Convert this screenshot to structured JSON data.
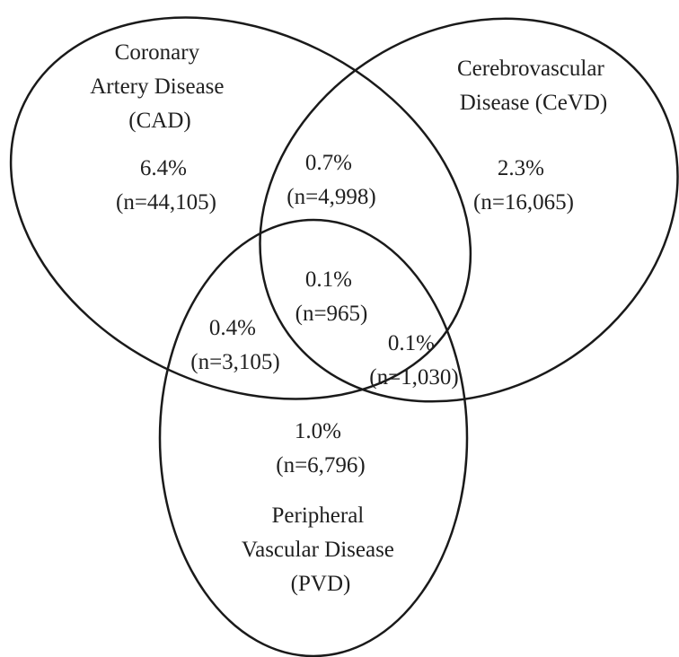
{
  "sets": [
    {
      "id": "cad",
      "label_lines": [
        "Coronary",
        "Artery Disease",
        "(CAD)"
      ]
    },
    {
      "id": "cevd",
      "label_lines": [
        "Cerebrovascular",
        "Disease (CeVD)"
      ]
    },
    {
      "id": "pvd",
      "label_lines": [
        "Peripheral",
        "Vascular Disease",
        "(PVD)"
      ]
    }
  ],
  "regions": {
    "cad_only": {
      "sets": [
        "cad"
      ],
      "percent": "6.4%",
      "count": "(n=44,105)"
    },
    "cevd_only": {
      "sets": [
        "cevd"
      ],
      "percent": "2.3%",
      "count": "(n=16,065)"
    },
    "pvd_only": {
      "sets": [
        "pvd"
      ],
      "percent": "1.0%",
      "count": "(n=6,796)"
    },
    "cad_cevd": {
      "sets": [
        "cad",
        "cevd"
      ],
      "percent": "0.7%",
      "count": "(n=4,998)"
    },
    "cad_pvd": {
      "sets": [
        "cad",
        "pvd"
      ],
      "percent": "0.4%",
      "count": "(n=3,105)"
    },
    "cevd_pvd": {
      "sets": [
        "cevd",
        "pvd"
      ],
      "percent": "0.1%",
      "count": "(n=1,030)"
    },
    "all_three": {
      "sets": [
        "cad",
        "cevd",
        "pvd"
      ],
      "percent": "0.1%",
      "count": "(n=965)"
    }
  }
}
